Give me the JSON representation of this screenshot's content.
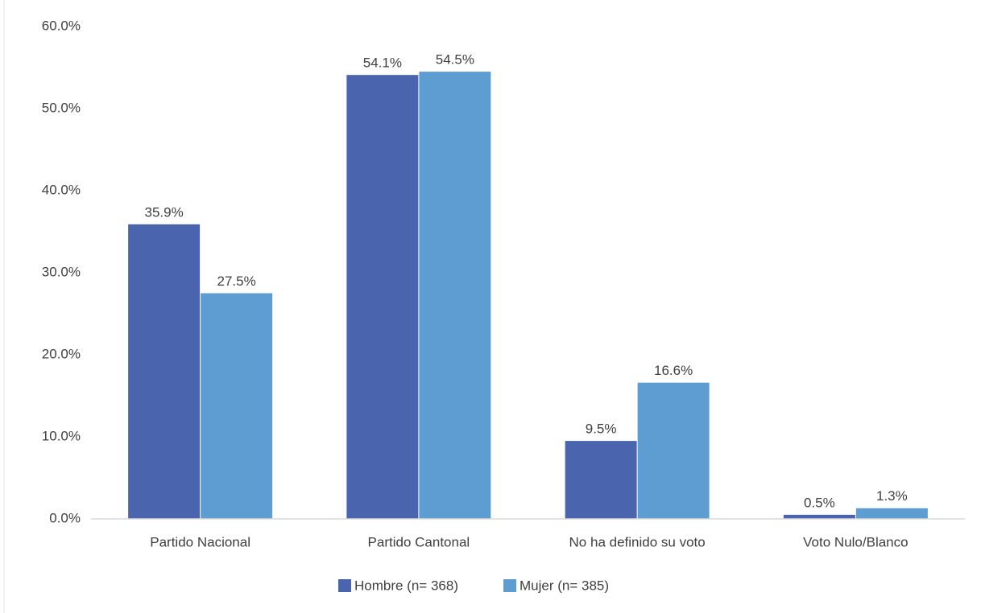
{
  "chart_data": {
    "type": "bar",
    "categories": [
      "Partido Nacional",
      "Partido Cantonal",
      "No ha definido su voto",
      "Voto Nulo/Blanco"
    ],
    "series": [
      {
        "name": "Hombre (n= 368)",
        "color": "#4a65ad",
        "values": [
          35.9,
          54.1,
          9.5,
          0.5
        ],
        "value_labels": [
          "35.9%",
          "54.1%",
          "9.5%",
          "0.5%"
        ]
      },
      {
        "name": "Mujer (n= 385)",
        "color": "#5e9dd2",
        "values": [
          27.5,
          54.5,
          16.6,
          1.3
        ],
        "value_labels": [
          "27.5%",
          "54.5%",
          "16.6%",
          "1.3%"
        ]
      }
    ],
    "ylim": [
      0,
      60
    ],
    "yticks": [
      {
        "value": 0,
        "label": "0.0%"
      },
      {
        "value": 10,
        "label": "10.0%"
      },
      {
        "value": 20,
        "label": "20.0%"
      },
      {
        "value": 30,
        "label": "30.0%"
      },
      {
        "value": 40,
        "label": "40.0%"
      },
      {
        "value": 50,
        "label": "50.0%"
      },
      {
        "value": 60,
        "label": "60.0%"
      }
    ],
    "grid": false,
    "legend": "bottom"
  }
}
